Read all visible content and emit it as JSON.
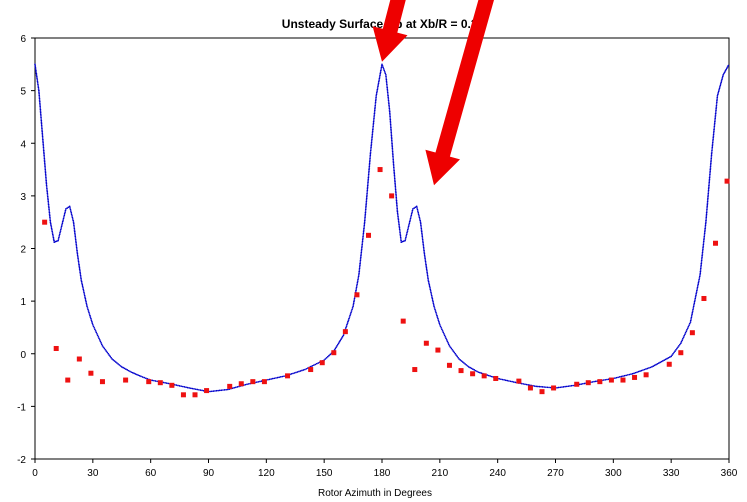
{
  "chart_data": {
    "type": "scatter",
    "title": "Unsteady Surface Cp at Xb/R = 0.36",
    "xlabel": "Rotor Azimuth in Degrees",
    "ylabel": "",
    "xlim": [
      0,
      360
    ],
    "ylim": [
      -2,
      6
    ],
    "x_ticks": [
      0,
      30,
      60,
      90,
      120,
      150,
      180,
      210,
      240,
      270,
      300,
      330,
      360
    ],
    "y_ticks": [
      -2,
      -1,
      0,
      1,
      2,
      3,
      4,
      5,
      6
    ],
    "grid": false,
    "series": [
      {
        "style": "dotted-line",
        "color": "#0000cc",
        "x": [
          0,
          2,
          4,
          6,
          8,
          10,
          12,
          14,
          16,
          18,
          20,
          22,
          24,
          27,
          30,
          35,
          40,
          45,
          50,
          55,
          60,
          70,
          80,
          90,
          100,
          110,
          120,
          130,
          140,
          150,
          155,
          160,
          165,
          168,
          171,
          174,
          177,
          180,
          182,
          184,
          186,
          188,
          190,
          192,
          194,
          196,
          198,
          200,
          202,
          204,
          207,
          210,
          215,
          220,
          225,
          230,
          240,
          250,
          260,
          270,
          280,
          290,
          300,
          310,
          320,
          330,
          335,
          340,
          345,
          348,
          351,
          354,
          357,
          360
        ],
        "y": [
          5.5,
          5.0,
          4.1,
          3.2,
          2.5,
          2.12,
          2.15,
          2.45,
          2.75,
          2.8,
          2.5,
          1.9,
          1.4,
          0.9,
          0.55,
          0.15,
          -0.1,
          -0.25,
          -0.35,
          -0.43,
          -0.5,
          -0.57,
          -0.65,
          -0.72,
          -0.68,
          -0.58,
          -0.5,
          -0.42,
          -0.3,
          -0.12,
          0.05,
          0.35,
          0.9,
          1.5,
          2.5,
          3.8,
          4.9,
          5.5,
          5.3,
          4.6,
          3.6,
          2.7,
          2.12,
          2.15,
          2.45,
          2.75,
          2.8,
          2.5,
          1.9,
          1.4,
          0.9,
          0.55,
          0.15,
          -0.1,
          -0.25,
          -0.35,
          -0.47,
          -0.55,
          -0.62,
          -0.65,
          -0.6,
          -0.53,
          -0.47,
          -0.38,
          -0.25,
          -0.05,
          0.2,
          0.6,
          1.5,
          2.5,
          3.8,
          4.9,
          5.3,
          5.5
        ]
      },
      {
        "style": "markers",
        "color": "#ee1111",
        "x": [
          5,
          11,
          17,
          23,
          29,
          35,
          47,
          59,
          65,
          71,
          77,
          83,
          89,
          101,
          107,
          113,
          119,
          131,
          143,
          149,
          155,
          161,
          167,
          173,
          179,
          185,
          191,
          197,
          203,
          209,
          215,
          221,
          227,
          233,
          239,
          251,
          257,
          263,
          269,
          281,
          287,
          293,
          299,
          305,
          311,
          317,
          329,
          335,
          341,
          347,
          353,
          359
        ],
        "y": [
          2.5,
          0.1,
          -0.5,
          -0.1,
          -0.37,
          -0.53,
          -0.5,
          -0.53,
          -0.55,
          -0.6,
          -0.78,
          -0.78,
          -0.7,
          -0.62,
          -0.57,
          -0.53,
          -0.53,
          -0.42,
          -0.3,
          -0.17,
          0.02,
          0.42,
          1.12,
          2.25,
          3.5,
          3.0,
          0.62,
          -0.3,
          0.2,
          0.07,
          -0.22,
          -0.32,
          -0.38,
          -0.42,
          -0.47,
          -0.52,
          -0.65,
          -0.72,
          -0.65,
          -0.58,
          -0.55,
          -0.53,
          -0.5,
          -0.5,
          -0.45,
          -0.4,
          -0.2,
          0.02,
          0.4,
          1.05,
          2.1,
          3.28
        ]
      }
    ],
    "annotations": [
      {
        "type": "arrow",
        "color": "#ee0000",
        "from": [
          203,
          8.8
        ],
        "to": [
          180,
          5.55
        ]
      },
      {
        "type": "arrow",
        "color": "#ee0000",
        "from": [
          250,
          8.8
        ],
        "to": [
          207,
          3.2
        ]
      }
    ]
  }
}
